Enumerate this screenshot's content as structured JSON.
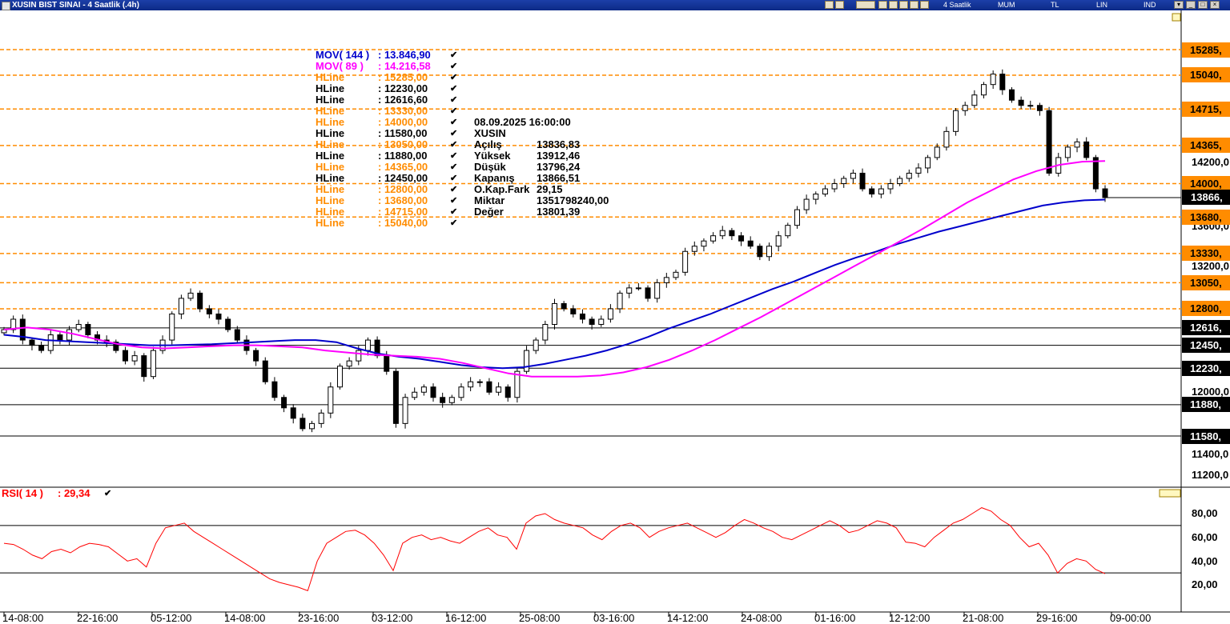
{
  "window": {
    "title": "XUSIN BIST SINAI - 4 Saatlik (.4h)",
    "toolbar": [
      "4 Saatlik",
      "MUM",
      "TL",
      "LIN",
      "IND"
    ]
  },
  "legend": {
    "mov144": {
      "name": "MOV( 144 )",
      "value": ": 13.846,90",
      "color": "#0000cc"
    },
    "mov89": {
      "name": "MOV( 89 )",
      "value": ": 14.216,58",
      "color": "#ff00ff"
    },
    "hlines": [
      {
        "name": "HLine",
        "value": ": 15285,00",
        "color": "#ff8c00"
      },
      {
        "name": "HLine",
        "value": ": 12230,00",
        "color": "#000000"
      },
      {
        "name": "HLine",
        "value": ": 12616,60",
        "color": "#000000"
      },
      {
        "name": "HLine",
        "value": ": 13330,00",
        "color": "#ff8c00"
      },
      {
        "name": "HLine",
        "value": ": 14000,00",
        "color": "#ff8c00"
      },
      {
        "name": "HLine",
        "value": ": 11580,00",
        "color": "#000000"
      },
      {
        "name": "HLine",
        "value": ": 13050,00",
        "color": "#ff8c00"
      },
      {
        "name": "HLine",
        "value": ": 11880,00",
        "color": "#000000"
      },
      {
        "name": "HLine",
        "value": ": 14365,00",
        "color": "#ff8c00"
      },
      {
        "name": "HLine",
        "value": ": 12450,00",
        "color": "#000000"
      },
      {
        "name": "HLine",
        "value": ": 12800,00",
        "color": "#ff8c00"
      },
      {
        "name": "HLine",
        "value": ": 13680,00",
        "color": "#ff8c00"
      },
      {
        "name": "HLine",
        "value": ": 14715,00",
        "color": "#ff8c00"
      },
      {
        "name": "HLine",
        "value": ": 15040,00",
        "color": "#ff8c00"
      }
    ]
  },
  "info": {
    "datetime": "08.09.2025  16:00:00",
    "symbol": "XUSIN",
    "rows": [
      {
        "label": "Açılış",
        "value": "13836,83"
      },
      {
        "label": "Yüksek",
        "value": "13912,46"
      },
      {
        "label": "Düşük",
        "value": "13796,24"
      },
      {
        "label": "Kapanış",
        "value": "13866,51"
      },
      {
        "label": "O.Kap.Fark",
        "value": "29,15"
      },
      {
        "label": "Miktar",
        "value": "1351798240,00"
      },
      {
        "label": "Değer",
        "value": "13801,39"
      }
    ]
  },
  "rsi": {
    "label": "RSI( 14 )",
    "value": ": 29,34",
    "levels": [
      70,
      30
    ]
  },
  "colors": {
    "up": "#ffffff",
    "down": "#000000",
    "hline_orange": "#ff8c00",
    "hline_black": "#000000",
    "mov144": "#0000cc",
    "mov89": "#ff00ff",
    "rsi": "#ff0000"
  },
  "chart_data": {
    "type": "candlestick",
    "symbol": "XUSIN",
    "timeframe": "4 Saatlik",
    "y_axis_ticks": [
      "14200,0",
      "13600,0",
      "13200,0",
      "12000,0",
      "11400,0",
      "11200,0"
    ],
    "y_axis_visible_range": [
      11050,
      15450
    ],
    "last_price_label": "13866,",
    "x_axis_labels": [
      "14-08:00",
      "22-16:00",
      "05-12:00",
      "14-08:00",
      "23-16:00",
      "03-12:00",
      "16-12:00",
      "25-08:00",
      "03-16:00",
      "14-12:00",
      "24-08:00",
      "01-16:00",
      "12-12:00",
      "21-08:00",
      "29-16:00",
      "09-00:00"
    ],
    "hline_labels": [
      {
        "value": 15285,
        "label": "15285,",
        "color": "#ff8c00",
        "style": "dashed"
      },
      {
        "value": 15040,
        "label": "15040,",
        "color": "#ff8c00",
        "style": "dashed"
      },
      {
        "value": 14715,
        "label": "14715,",
        "color": "#ff8c00",
        "style": "dashed"
      },
      {
        "value": 14365,
        "label": "14365,",
        "color": "#ff8c00",
        "style": "dashed"
      },
      {
        "value": 14000,
        "label": "14000,",
        "color": "#ff8c00",
        "style": "dashed"
      },
      {
        "value": 13680,
        "label": "13680,",
        "color": "#ff8c00",
        "style": "dashed"
      },
      {
        "value": 13330,
        "label": "13330,",
        "color": "#ff8c00",
        "style": "dashed"
      },
      {
        "value": 13050,
        "label": "13050,",
        "color": "#ff8c00",
        "style": "dashed"
      },
      {
        "value": 12800,
        "label": "12800,",
        "color": "#ff8c00",
        "style": "dashed"
      },
      {
        "value": 12616.6,
        "label": "12616,",
        "color": "#000000",
        "style": "solid"
      },
      {
        "value": 12450,
        "label": "12450,",
        "color": "#000000",
        "style": "solid"
      },
      {
        "value": 12230,
        "label": "12230,",
        "color": "#000000",
        "style": "solid"
      },
      {
        "value": 11880,
        "label": "11880,",
        "color": "#000000",
        "style": "solid"
      },
      {
        "value": 11580,
        "label": "11580,",
        "color": "#000000",
        "style": "solid"
      }
    ],
    "close_series": [
      12600,
      12700,
      12500,
      12450,
      12400,
      12550,
      12500,
      12600,
      12650,
      12550,
      12500,
      12480,
      12400,
      12300,
      12350,
      12150,
      12400,
      12500,
      12750,
      12900,
      12950,
      12800,
      12750,
      12700,
      12600,
      12500,
      12400,
      12300,
      12100,
      11950,
      11850,
      11750,
      11650,
      11700,
      11800,
      12050,
      12250,
      12300,
      12400,
      12500,
      12350,
      12200,
      11700,
      11950,
      12000,
      12050,
      11950,
      11900,
      11950,
      12050,
      12100,
      12100,
      12000,
      12050,
      11950,
      12200,
      12400,
      12500,
      12650,
      12850,
      12800,
      12750,
      12700,
      12650,
      12700,
      12800,
      12950,
      13000,
      13000,
      12900,
      13050,
      13100,
      13150,
      13350,
      13400,
      13450,
      13500,
      13550,
      13500,
      13450,
      13400,
      13300,
      13400,
      13500,
      13600,
      13750,
      13850,
      13900,
      13950,
      14000,
      14050,
      14100,
      13950,
      13900,
      13950,
      14000,
      14050,
      14100,
      14150,
      14250,
      14350,
      14500,
      14700,
      14750,
      14850,
      14950,
      15050,
      14900,
      14800,
      14750,
      14750,
      14700,
      14100,
      14250,
      14350,
      14400,
      14250,
      13950,
      13866
    ],
    "mov144_series": [
      12550,
      12530,
      12500,
      12490,
      12480,
      12470,
      12460,
      12450,
      12450,
      12455,
      12460,
      12470,
      12480,
      12490,
      12500,
      12500,
      12480,
      12420,
      12370,
      12340,
      12320,
      12290,
      12260,
      12240,
      12230,
      12240,
      12270,
      12310,
      12350,
      12400,
      12460,
      12530,
      12610,
      12680,
      12750,
      12830,
      12910,
      12990,
      13060,
      13140,
      13220,
      13290,
      13350,
      13420,
      13480,
      13540,
      13590,
      13640,
      13690,
      13740,
      13790,
      13820,
      13840,
      13846.9
    ],
    "mov89_series": [
      12600,
      12620,
      12600,
      12560,
      12510,
      12460,
      12430,
      12420,
      12430,
      12440,
      12450,
      12450,
      12440,
      12430,
      12400,
      12380,
      12360,
      12350,
      12340,
      12320,
      12280,
      12230,
      12180,
      12150,
      12150,
      12150,
      12160,
      12190,
      12240,
      12310,
      12400,
      12500,
      12610,
      12720,
      12840,
      12960,
      13080,
      13200,
      13320,
      13440,
      13560,
      13690,
      13820,
      13930,
      14040,
      14120,
      14180,
      14210,
      14216.58
    ],
    "rsi_series": [
      55,
      54,
      50,
      45,
      42,
      48,
      50,
      47,
      52,
      55,
      54,
      52,
      46,
      40,
      42,
      35,
      55,
      68,
      70,
      72,
      65,
      60,
      55,
      50,
      45,
      40,
      35,
      30,
      25,
      22,
      20,
      18,
      15,
      40,
      55,
      60,
      65,
      66,
      62,
      55,
      45,
      32,
      55,
      60,
      62,
      58,
      60,
      57,
      55,
      60,
      65,
      68,
      62,
      60,
      50,
      72,
      78,
      80,
      75,
      72,
      70,
      68,
      62,
      58,
      65,
      70,
      72,
      68,
      60,
      65,
      68,
      70,
      72,
      68,
      64,
      60,
      64,
      70,
      75,
      72,
      68,
      65,
      60,
      58,
      62,
      66,
      70,
      74,
      70,
      64,
      66,
      70,
      74,
      72,
      68,
      56,
      55,
      52,
      60,
      66,
      72,
      75,
      80,
      85,
      82,
      75,
      70,
      60,
      52,
      55,
      45,
      30,
      38,
      42,
      40,
      33,
      29.34
    ],
    "rsi_ticks": [
      "80,00",
      "60,00",
      "40,00",
      "20,00"
    ]
  }
}
